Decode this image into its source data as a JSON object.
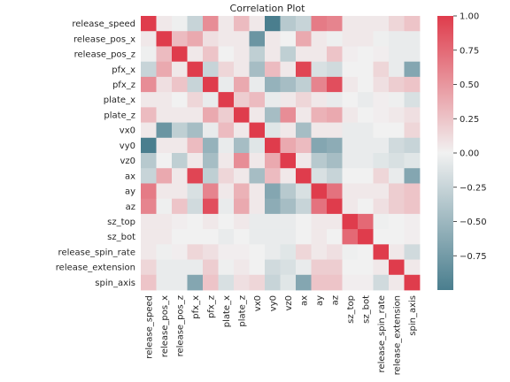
{
  "chart_data": {
    "type": "heatmap",
    "title": "Correlation Plot",
    "xlabel": "",
    "ylabel": "",
    "variables": [
      "release_speed",
      "release_pos_x",
      "release_pos_z",
      "pfx_x",
      "pfx_z",
      "plate_x",
      "plate_z",
      "vx0",
      "vy0",
      "vz0",
      "ax",
      "ay",
      "az",
      "sz_top",
      "sz_bot",
      "release_spin_rate",
      "release_extension",
      "spin_axis"
    ],
    "matrix": [
      [
        1.0,
        0.05,
        -0.02,
        -0.25,
        0.55,
        0.05,
        0.3,
        0.05,
        -1.0,
        -0.35,
        -0.25,
        0.65,
        0.6,
        0.05,
        0.05,
        0.05,
        0.15,
        0.25
      ],
      [
        0.05,
        1.0,
        0.3,
        0.4,
        0.1,
        0.05,
        0.05,
        -0.8,
        0.05,
        0.0,
        0.4,
        0.05,
        -0.02,
        0.05,
        0.05,
        -0.02,
        -0.05,
        -0.05
      ],
      [
        -0.02,
        0.3,
        1.0,
        0.05,
        0.25,
        0.0,
        0.05,
        -0.3,
        0.05,
        -0.3,
        0.05,
        0.05,
        0.25,
        0.02,
        0.0,
        0.02,
        -0.05,
        -0.05
      ],
      [
        -0.25,
        0.4,
        0.05,
        1.0,
        -0.25,
        0.15,
        0.05,
        -0.45,
        0.3,
        0.05,
        0.95,
        -0.15,
        -0.2,
        0.0,
        0.0,
        0.15,
        -0.05,
        -0.65
      ],
      [
        0.55,
        0.1,
        0.25,
        -0.25,
        1.0,
        -0.05,
        0.4,
        -0.05,
        -0.55,
        -0.45,
        -0.3,
        0.6,
        0.9,
        0.05,
        0.0,
        0.1,
        0.2,
        0.25
      ],
      [
        0.05,
        0.05,
        0.0,
        0.15,
        -0.05,
        1.0,
        0.2,
        0.3,
        -0.05,
        0.05,
        0.15,
        0.05,
        -0.05,
        0.0,
        -0.05,
        0.02,
        -0.02,
        -0.15
      ],
      [
        0.3,
        0.05,
        0.05,
        0.05,
        0.4,
        0.2,
        1.0,
        0.05,
        -0.45,
        0.55,
        0.05,
        0.35,
        0.4,
        0.05,
        0.0,
        0.02,
        0.05,
        0.1
      ],
      [
        0.05,
        -0.8,
        -0.3,
        -0.45,
        -0.05,
        0.3,
        0.05,
        1.0,
        -0.1,
        0.05,
        -0.45,
        0.05,
        0.05,
        -0.05,
        -0.05,
        0.0,
        0.0,
        0.15
      ],
      [
        -1.0,
        0.05,
        0.05,
        0.3,
        -0.55,
        -0.05,
        -0.45,
        -0.1,
        1.0,
        0.4,
        0.3,
        -0.65,
        -0.6,
        -0.05,
        -0.05,
        -0.05,
        -0.2,
        -0.25
      ],
      [
        -0.35,
        0.0,
        -0.3,
        0.05,
        -0.45,
        0.05,
        0.55,
        0.05,
        0.4,
        1.0,
        0.05,
        -0.35,
        -0.45,
        -0.05,
        -0.05,
        -0.1,
        -0.15,
        -0.1
      ],
      [
        -0.25,
        0.4,
        0.05,
        0.95,
        -0.3,
        0.15,
        0.05,
        -0.45,
        0.3,
        0.05,
        1.0,
        -0.15,
        -0.25,
        0.0,
        0.0,
        0.15,
        -0.05,
        -0.65
      ],
      [
        0.65,
        0.05,
        0.05,
        -0.15,
        0.6,
        0.05,
        0.35,
        0.05,
        -0.65,
        -0.35,
        -0.15,
        1.0,
        0.7,
        0.05,
        0.05,
        0.05,
        0.2,
        0.25
      ],
      [
        0.6,
        -0.02,
        0.25,
        -0.2,
        0.9,
        -0.05,
        0.4,
        0.05,
        -0.6,
        -0.45,
        -0.25,
        0.7,
        1.0,
        0.05,
        0.0,
        0.1,
        0.2,
        0.25
      ],
      [
        0.05,
        0.05,
        0.02,
        0.0,
        0.05,
        0.0,
        0.05,
        -0.05,
        -0.05,
        -0.05,
        0.0,
        0.05,
        0.05,
        1.0,
        0.75,
        -0.02,
        0.0,
        0.02
      ],
      [
        0.05,
        0.05,
        0.0,
        0.0,
        0.0,
        -0.05,
        0.0,
        -0.05,
        -0.05,
        -0.05,
        0.0,
        0.05,
        0.0,
        0.75,
        1.0,
        0.0,
        0.0,
        0.02
      ],
      [
        0.05,
        -0.02,
        0.02,
        0.15,
        0.1,
        0.02,
        0.02,
        0.0,
        -0.05,
        -0.1,
        0.15,
        0.05,
        0.1,
        -0.02,
        0.0,
        1.0,
        0.05,
        -0.2
      ],
      [
        0.15,
        -0.05,
        -0.05,
        -0.05,
        0.2,
        -0.02,
        0.05,
        0.0,
        -0.2,
        -0.15,
        -0.05,
        0.2,
        0.2,
        0.0,
        0.0,
        0.05,
        1.0,
        0.05
      ],
      [
        0.25,
        -0.05,
        -0.05,
        -0.65,
        0.25,
        -0.15,
        0.1,
        0.15,
        -0.25,
        -0.1,
        -0.65,
        0.25,
        0.25,
        0.02,
        0.02,
        -0.2,
        0.05,
        1.0
      ]
    ],
    "vmin": -1.0,
    "vmax": 1.0,
    "colorbar_ticks": [
      {
        "value": 1.0,
        "label": "1.00"
      },
      {
        "value": 0.75,
        "label": "0.75"
      },
      {
        "value": 0.5,
        "label": "0.50"
      },
      {
        "value": 0.25,
        "label": "0.25"
      },
      {
        "value": 0.0,
        "label": "0.00"
      },
      {
        "value": -0.25,
        "label": "−0.25"
      },
      {
        "value": -0.5,
        "label": "−0.50"
      },
      {
        "value": -0.75,
        "label": "−0.75"
      }
    ],
    "colormap": {
      "negative": "#4a7e8e",
      "neutral": "#f1f1f1",
      "positive": "#df3c4c"
    }
  }
}
